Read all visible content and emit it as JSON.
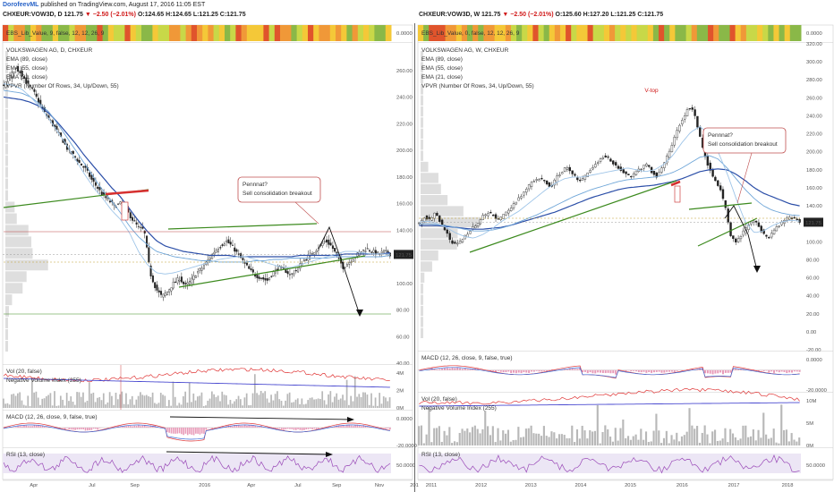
{
  "header": {
    "user": "DorofeevML",
    "published": "published on TradingView.com, August 17, 2016 11:05 EST",
    "left": {
      "symbol": "CHXEUR:VOW3D, D",
      "price": "121.75",
      "change": "−2.50 (−2.01%)",
      "ohlc": "O:124.65 H:124.65 L:121.25 C:121.75"
    },
    "right": {
      "symbol": "CHXEUR:VOW3D, W",
      "price": "121.75",
      "change": "−2.50 (−2.01%)",
      "ohlc": "O:125.60 H:127.20 L:121.25 C:121.75"
    }
  },
  "colors": {
    "up": "#222222",
    "down": "#222222",
    "ema89": "#2c4fa8",
    "ema55": "#6fa6d8",
    "ema21": "#9fc5e8",
    "trend_green": "#3c8a1e",
    "resist_red": "#d63030",
    "vol_gray": "#b8b8b8",
    "nvi_blue": "#4a4ad0",
    "vol_red": "#e03838",
    "macd_red": "#e03a3a",
    "macd_blue": "#3a6ad8",
    "macd_hist": "#e89ab8",
    "rsi": "#9a4ab8",
    "rsi_band": "#ece6f5",
    "heat": [
      "#e0542c",
      "#f09838",
      "#f4c838",
      "#8ab848",
      "#c8d848"
    ]
  },
  "chart_data": [
    {
      "id": "left",
      "type": "candlestick",
      "title": "VOLKSWAGEN AG, D, CHXEUR",
      "legend": [
        "EMA (89, close)",
        "EMA (55, close)",
        "EMA (21, close)",
        "VPVR (Number Of Rows, 34, Up/Down, 55)"
      ],
      "heat_label": "EBS_Lib_Value, 9, false, 12, 12, 26, 9",
      "heat_value": "0.0000",
      "x_ticks": [
        "Apr",
        "Jul",
        "Sep",
        "2016",
        "Apr",
        "Jul",
        "Sep",
        "Nov",
        "201"
      ],
      "y_ticks": [
        "260.00",
        "240.00",
        "220.00",
        "200.00",
        "180.00",
        "160.00",
        "140.00",
        "120.00",
        "100.00",
        "80.00",
        "60.00",
        "40.00"
      ],
      "ylim": [
        40,
        280
      ],
      "last_price": "121.75",
      "annotation": [
        "Pennnat?",
        "Sell consolidation breakout"
      ],
      "series": [
        {
          "name": "Close",
          "values": [
            248,
            255,
            262,
            258,
            250,
            245,
            236,
            228,
            222,
            215,
            208,
            200,
            196,
            190,
            186,
            178,
            172,
            166,
            162,
            158,
            160,
            155,
            148,
            142,
            140,
            108,
            96,
            90,
            94,
            100,
            104,
            98,
            102,
            108,
            112,
            118,
            124,
            128,
            132,
            128,
            122,
            116,
            110,
            106,
            104,
            102,
            108,
            112,
            110,
            106,
            110,
            116,
            120,
            124,
            128,
            132,
            128,
            120,
            112,
            116,
            120,
            124,
            126,
            124,
            122,
            124,
            122
          ]
        },
        {
          "name": "EMA (89, close)",
          "values": [
            240,
            239,
            238,
            236,
            233,
            228,
            221,
            213,
            205,
            196,
            188,
            180,
            172,
            165,
            156,
            147,
            139,
            132,
            128,
            126,
            124,
            123,
            122,
            121,
            121,
            121,
            120,
            120,
            120,
            120,
            120,
            120,
            120,
            121,
            121,
            121,
            121,
            121,
            122,
            122,
            122,
            122,
            122,
            123
          ]
        },
        {
          "name": "EMA (55, close)",
          "values": [
            245,
            244,
            243,
            240,
            235,
            229,
            220,
            210,
            200,
            190,
            180,
            170,
            162,
            153,
            143,
            135,
            129,
            124,
            122,
            120,
            119,
            118,
            117,
            117,
            116,
            116,
            116,
            116,
            117,
            117,
            118,
            118,
            119,
            119,
            119,
            119,
            119,
            120,
            120,
            120,
            120,
            120,
            120,
            121
          ]
        },
        {
          "name": "EMA (21, close)",
          "values": [
            250,
            249,
            246,
            240,
            233,
            224,
            214,
            204,
            193,
            182,
            172,
            164,
            155,
            148,
            138,
            124,
            114,
            108,
            107,
            108,
            110,
            112,
            114,
            116,
            118,
            119,
            120,
            120,
            118,
            116,
            114,
            112,
            112,
            114,
            116,
            118,
            120,
            122,
            124,
            124,
            123,
            122,
            122,
            122
          ]
        }
      ],
      "panes": [
        {
          "label": "Vol (20, false)",
          "label2": "Negative Volume Index (255)",
          "ticks": [
            "4M",
            "2M",
            "0M"
          ]
        },
        {
          "label": "MACD (12, 26, close, 9, false, true)",
          "ticks": [
            "0.0000",
            "-20.0000"
          ]
        },
        {
          "label": "RSI (13, close)",
          "ticks": [
            "50.0000"
          ]
        }
      ]
    },
    {
      "id": "right",
      "type": "candlestick",
      "title": "VOLKSWAGEN AG, W, CHXEUR",
      "legend": [
        "EMA (89, close)",
        "EMA (55, close)",
        "EMA (21, close)",
        "VPVR (Number Of Rows, 34, Up/Down, 55)"
      ],
      "heat_label": "EBS_Lib_Value, 0, false, 12, 12, 26, 9",
      "heat_value": "0.0000",
      "x_ticks": [
        "2011",
        "2012",
        "2013",
        "2014",
        "2015",
        "2016",
        "2017",
        "2018"
      ],
      "y_ticks": [
        "320.00",
        "300.00",
        "280.00",
        "260.00",
        "240.00",
        "220.00",
        "200.00",
        "180.00",
        "160.00",
        "140.00",
        "120.00",
        "100.00",
        "80.00",
        "60.00",
        "40.00",
        "20.00",
        "0.00",
        "-20.00"
      ],
      "ylim": [
        -20,
        320
      ],
      "last_price": "121.75",
      "annotation": [
        "Pennnat?",
        "Sell consolidation breakout"
      ],
      "vtop_label": "V-top",
      "series": [
        {
          "name": "Close",
          "values": [
            120,
            128,
            124,
            132,
            122,
            112,
            100,
            96,
            102,
            108,
            116,
            120,
            128,
            132,
            130,
            124,
            130,
            136,
            142,
            150,
            156,
            164,
            168,
            170,
            166,
            160,
            172,
            178,
            184,
            176,
            168,
            170,
            178,
            184,
            190,
            196,
            192,
            186,
            180,
            176,
            172,
            178,
            182,
            186,
            178,
            172,
            184,
            196,
            210,
            226,
            238,
            250,
            244,
            220,
            196,
            180,
            168,
            158,
            136,
            104,
            100,
            108,
            116,
            124,
            120,
            110,
            104,
            112,
            118,
            124,
            128,
            126,
            122
          ]
        },
        {
          "name": "EMA (89, close)",
          "values": [
            118,
            118,
            118,
            117,
            116,
            115,
            114,
            114,
            115,
            116,
            118,
            121,
            124,
            127,
            130,
            133,
            137,
            141,
            145,
            149,
            152,
            155,
            158,
            160,
            161,
            162,
            163,
            165,
            167,
            170,
            174,
            178,
            180,
            181,
            180,
            175,
            168,
            160,
            154,
            150,
            146,
            142,
            140
          ]
        },
        {
          "name": "EMA (55, close)",
          "values": [
            120,
            120,
            119,
            118,
            116,
            114,
            112,
            112,
            113,
            115,
            118,
            122,
            126,
            130,
            135,
            140,
            145,
            150,
            154,
            158,
            161,
            164,
            167,
            169,
            170,
            171,
            172,
            174,
            177,
            182,
            188,
            194,
            196,
            192,
            182,
            170,
            158,
            148,
            140,
            135,
            132,
            130,
            129
          ]
        },
        {
          "name": "EMA (21, close)",
          "values": [
            122,
            123,
            120,
            116,
            110,
            106,
            104,
            108,
            114,
            122,
            128,
            134,
            142,
            150,
            158,
            165,
            170,
            172,
            172,
            174,
            176,
            178,
            180,
            182,
            180,
            178,
            180,
            186,
            196,
            210,
            222,
            228,
            220,
            200,
            176,
            148,
            122,
            110,
            112,
            118,
            122,
            124,
            123
          ]
        }
      ],
      "panes": [
        {
          "label": "MACD (12, 26, close, 9, false, true)",
          "ticks": [
            "0.0000",
            "-20.0000"
          ]
        },
        {
          "label": "Vol (20, false)",
          "label2": "Negative Volume Index (255)",
          "ticks": [
            "10M",
            "5M",
            "0M"
          ]
        },
        {
          "label": "RSI (13, close)",
          "ticks": [
            "50.0000"
          ]
        }
      ]
    }
  ]
}
